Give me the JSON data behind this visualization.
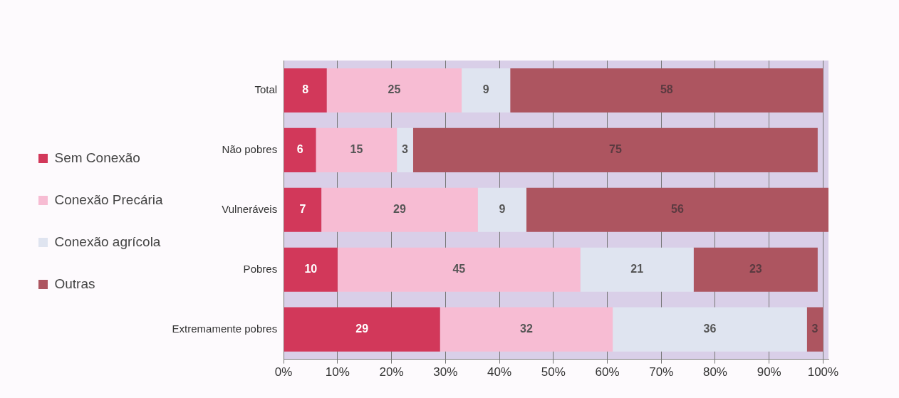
{
  "chart_data": {
    "type": "bar",
    "orientation": "horizontal",
    "stacked": true,
    "categories": [
      "Total",
      "Não pobres",
      "Vulneráveis",
      "Pobres",
      "Extremamente pobres"
    ],
    "series": [
      {
        "name": "Sem Conexão",
        "color": "#d2385a",
        "values": [
          8,
          6,
          7,
          10,
          29
        ]
      },
      {
        "name": "Conexão Precária",
        "color": "#f7bcd3",
        "values": [
          25,
          15,
          29,
          45,
          32
        ]
      },
      {
        "name": "Conexão agrícola",
        "color": "#dfe4f0",
        "values": [
          9,
          3,
          9,
          21,
          36
        ]
      },
      {
        "name": "Outras",
        "color": "#ad5560",
        "values": [
          58,
          75,
          56,
          23,
          3
        ]
      }
    ],
    "xlim": [
      0,
      101
    ],
    "xticks": [
      {
        "value": 0,
        "label": "0%"
      },
      {
        "value": 10,
        "label": "10%"
      },
      {
        "value": 20,
        "label": "20%"
      },
      {
        "value": 30,
        "label": "30%"
      },
      {
        "value": 40,
        "label": "40%"
      },
      {
        "value": 50,
        "label": "50%"
      },
      {
        "value": 60,
        "label": "60%"
      },
      {
        "value": 70,
        "label": "70%"
      },
      {
        "value": 80,
        "label": "80%"
      },
      {
        "value": 90,
        "label": "90%"
      },
      {
        "value": 100,
        "label": "100%"
      }
    ],
    "grid": "x",
    "legend": "left",
    "data_labels": true
  }
}
